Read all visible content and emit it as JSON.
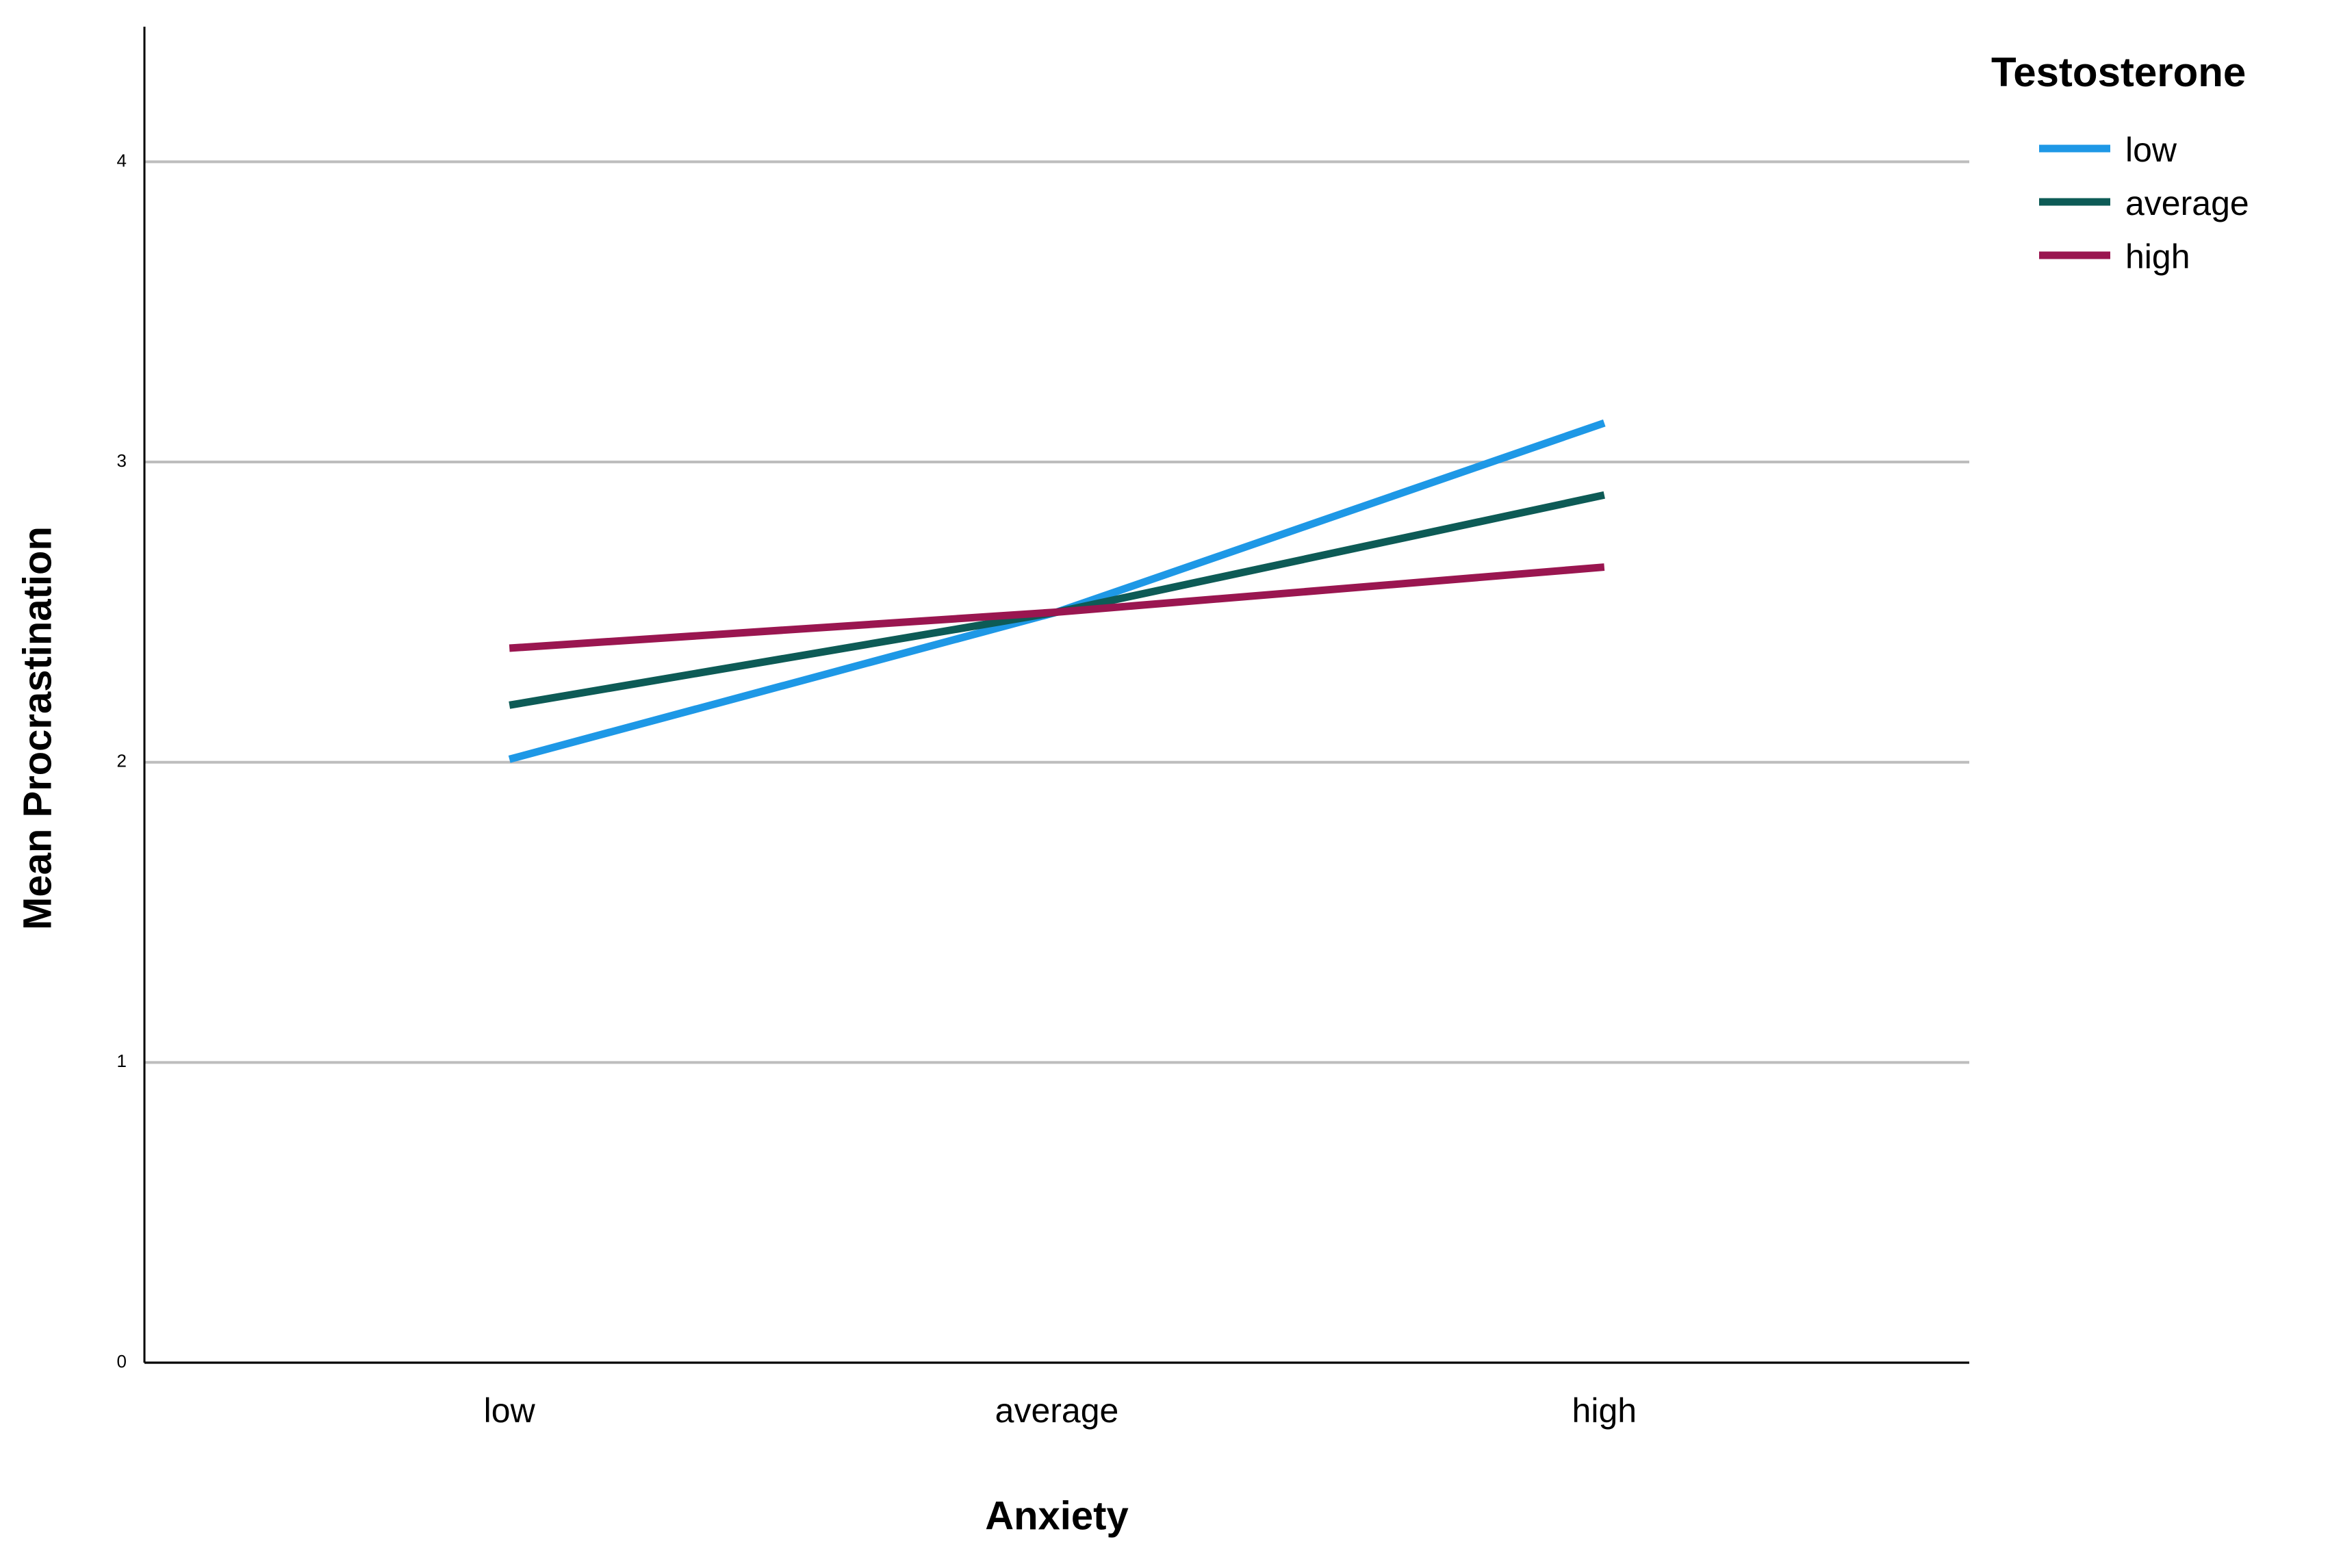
{
  "chart_data": {
    "type": "line",
    "x_label": "Anxiety",
    "y_label": "Mean Procrastination",
    "legend_title": "Testosterone",
    "categories": [
      "low",
      "average",
      "high"
    ],
    "series": [
      {
        "name": "low",
        "color": "#1e98e6",
        "values": [
          2.01,
          2.5,
          3.13
        ]
      },
      {
        "name": "average",
        "color": "#0d5b56",
        "values": [
          2.19,
          2.5,
          2.89
        ]
      },
      {
        "name": "high",
        "color": "#9a1650",
        "values": [
          2.38,
          2.5,
          2.65
        ]
      }
    ],
    "ylim": [
      0,
      4.45
    ],
    "yticks": [
      0,
      1,
      2,
      3,
      4
    ],
    "grid": true,
    "legend": "right"
  }
}
